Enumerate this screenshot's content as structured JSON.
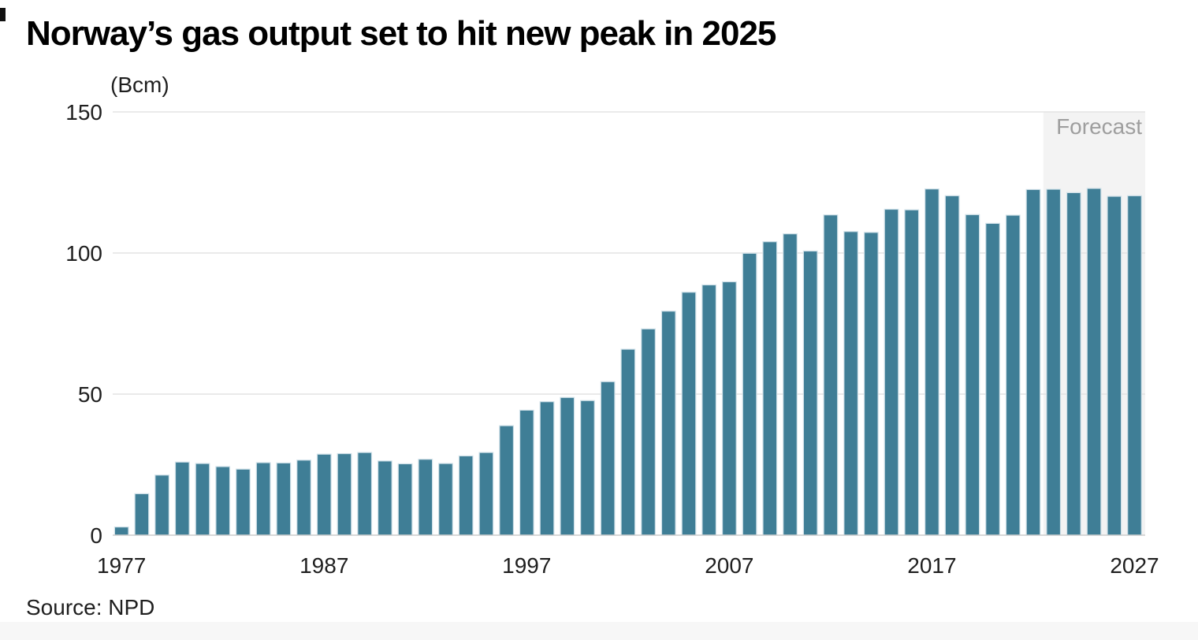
{
  "page": {
    "title": "Norway’s gas output set to hit new peak in 2025",
    "unit_label": "(Bcm)",
    "forecast_label": "Forecast",
    "source": "Source: NPD"
  },
  "chart_data": {
    "type": "bar",
    "title": "Norway’s gas output set to hit new peak in 2025",
    "ylabel": "(Bcm)",
    "xlabel": "",
    "ylim": [
      0,
      150
    ],
    "y_ticks": [
      0,
      50,
      100,
      150
    ],
    "x_ticks": [
      1977,
      1987,
      1997,
      2007,
      2017,
      2027
    ],
    "grid": true,
    "legend": "none",
    "categories": [
      1977,
      1978,
      1979,
      1980,
      1981,
      1982,
      1983,
      1984,
      1985,
      1986,
      1987,
      1988,
      1989,
      1990,
      1991,
      1992,
      1993,
      1994,
      1995,
      1996,
      1997,
      1998,
      1999,
      2000,
      2001,
      2002,
      2003,
      2004,
      2005,
      2006,
      2007,
      2008,
      2009,
      2010,
      2011,
      2012,
      2013,
      2014,
      2015,
      2016,
      2017,
      2018,
      2019,
      2020,
      2021,
      2022,
      2023,
      2024,
      2025,
      2026,
      2027
    ],
    "values": [
      2.9,
      14.7,
      21.3,
      25.9,
      25.4,
      24.3,
      23.4,
      25.7,
      25.6,
      26.6,
      28.7,
      28.9,
      29.3,
      26.3,
      25.3,
      26.9,
      25.4,
      28.1,
      29.3,
      38.8,
      44.3,
      47.3,
      48.8,
      47.7,
      54.4,
      65.9,
      73.1,
      79.4,
      86.1,
      88.7,
      89.8,
      99.9,
      104.0,
      106.8,
      100.7,
      113.5,
      107.6,
      107.3,
      115.5,
      115.3,
      122.7,
      120.3,
      113.6,
      110.5,
      113.4,
      122.5,
      122.6,
      121.4,
      122.9,
      120.1,
      120.3
    ],
    "forecast_start_year": 2023,
    "forecast_years": [
      2023,
      2024,
      2025,
      2026,
      2027
    ],
    "annotations": [
      "Forecast"
    ],
    "colors": {
      "bar_fill": "#3f7e96",
      "bar_stroke": "#cfe0e8",
      "gridline": "#e3e3e3",
      "axis_line": "#cccccc",
      "tick_label": "#1f1f1f",
      "forecast_bg": "#f3f3f3",
      "forecast_text": "#9e9e9e"
    },
    "source": "Source: NPD"
  }
}
